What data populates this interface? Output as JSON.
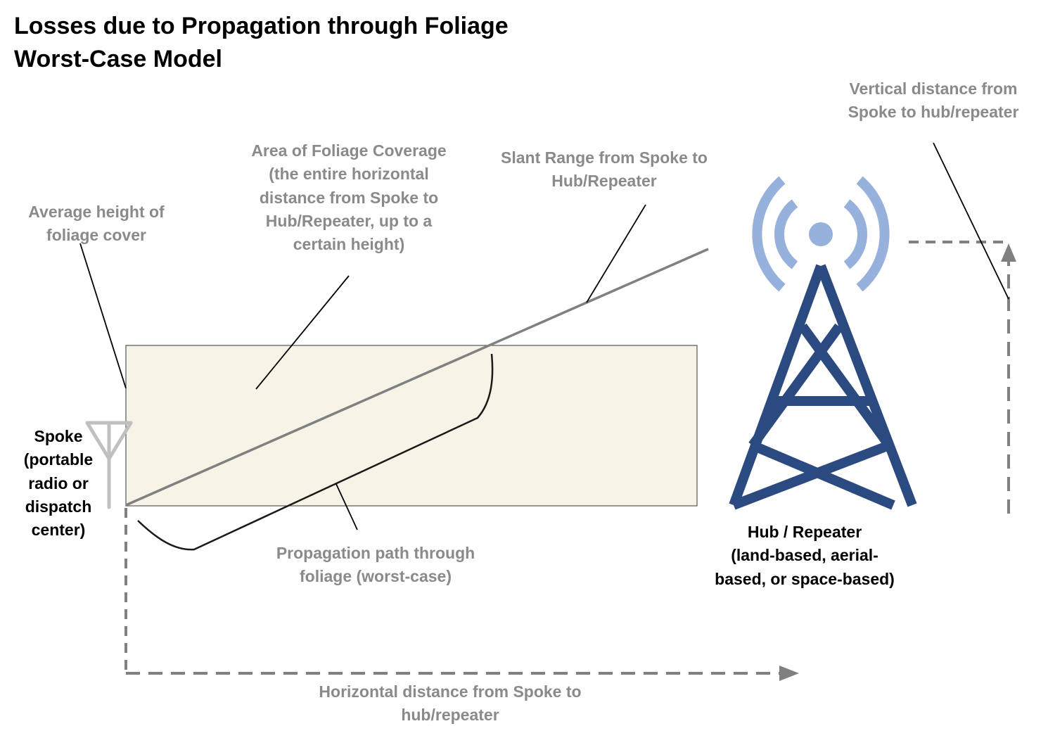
{
  "title": {
    "line1": "Losses due to Propagation through Foliage",
    "line2": "Worst-Case Model"
  },
  "labels": {
    "foliage_height": [
      "Average height of",
      "foliage cover"
    ],
    "foliage_area": [
      "Area of Foliage Coverage",
      "(the entire horizontal",
      "distance from Spoke to",
      "Hub/Repeater, up to a",
      "certain height)"
    ],
    "slant_range": [
      "Slant Range from Spoke to",
      "Hub/Repeater"
    ],
    "vertical_distance": [
      "Vertical distance from",
      "Spoke to hub/repeater"
    ],
    "spoke": [
      "Spoke",
      "(portable",
      "radio or",
      "dispatch",
      "center)"
    ],
    "hub": [
      "Hub / Repeater",
      "(land-based, aerial-",
      "based, or space-based)"
    ],
    "propagation_path": [
      "Propagation path through",
      "foliage (worst-case)"
    ],
    "horizontal_distance": [
      "Horizontal distance from Spoke to",
      "hub/repeater"
    ]
  },
  "icons": {
    "spoke": "antenna-icon",
    "hub": "radio-tower-icon"
  },
  "colors": {
    "foliage_fill": "#f7f3e6",
    "foliage_border": "#555555",
    "label_gray": "#8a8a8a",
    "slant_line": "#808080",
    "tower_navy": "#2b4a80",
    "signal_blue": "#97b1dd",
    "antenna_gray": "#c0c0c0",
    "dashed_gray": "#808080"
  }
}
